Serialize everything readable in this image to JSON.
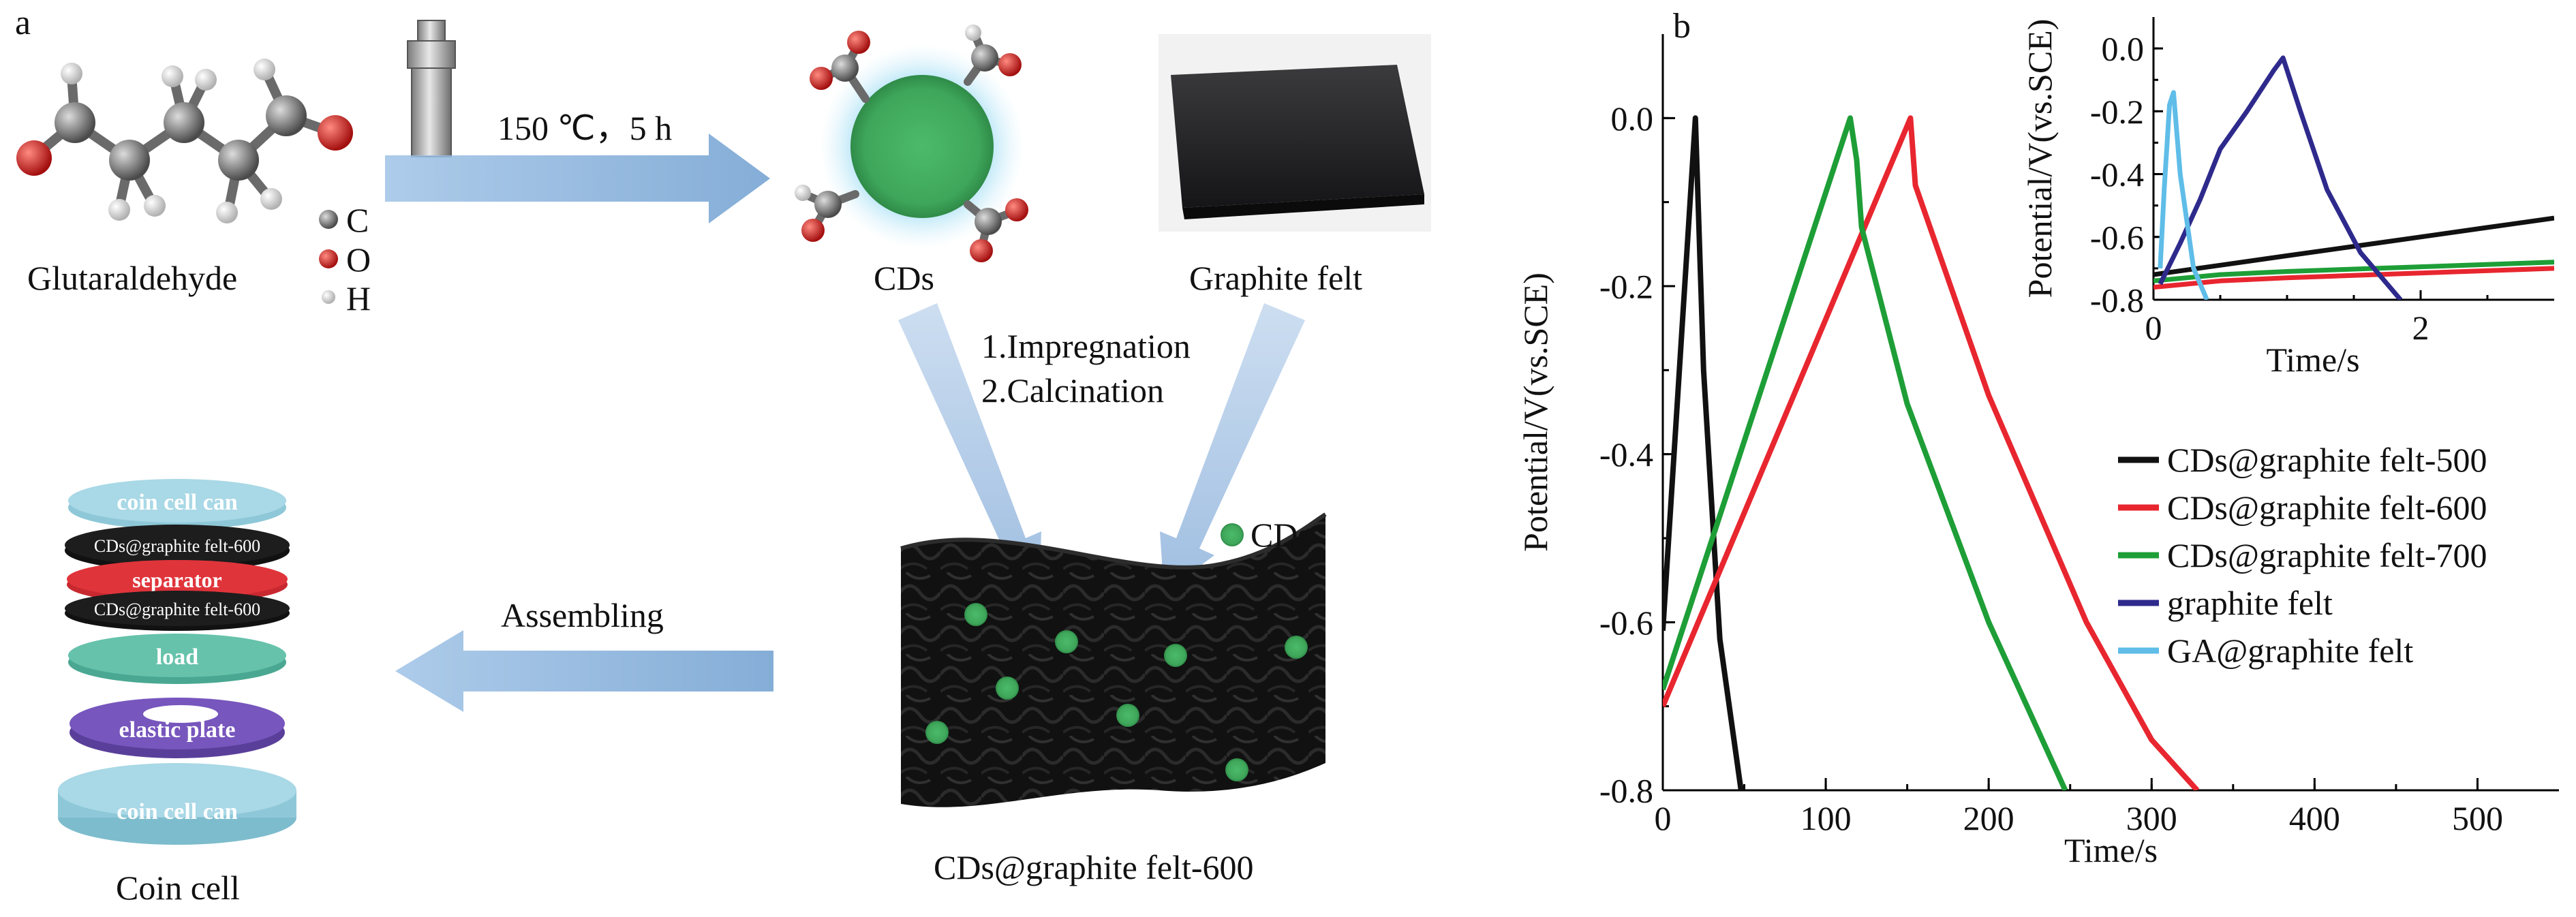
{
  "panel_a": {
    "panel_label": "a",
    "molecule_label": "Glutaraldehyde",
    "atom_legend": [
      "C",
      "O",
      "H"
    ],
    "reaction_condition": "150 ℃，5 h",
    "cds_label": "CDs",
    "graphite_felt_label": "Graphite felt",
    "step1": "1.Impregnation",
    "step2": "2.Calcination",
    "product_legend": "CDs",
    "product_label": "CDs@graphite felt-600",
    "assembling_label": "Assembling",
    "coin_cell_label": "Coin cell",
    "coin_layers": [
      "coin cell can",
      "CDs@graphite felt-600",
      "separator",
      "CDs@graphite felt-600",
      "load",
      "elastic plate",
      "coin cell can"
    ]
  },
  "chart_data": [
    {
      "type": "line",
      "panel_label": "b",
      "xlabel": "Time/s",
      "ylabel": "Potential/V(vs.SCE)",
      "xlim": [
        0,
        550
      ],
      "ylim": [
        -0.8,
        0.1
      ],
      "xticks": [
        "0",
        "100",
        "200",
        "300",
        "400",
        "500"
      ],
      "yticks": [
        "0.0",
        "-0.2",
        "-0.4",
        "-0.6",
        "-0.8"
      ],
      "legend_position": "right",
      "series": [
        {
          "name": "CDs@graphite felt-500",
          "color": "#111111",
          "x": [
            0,
            20,
            25,
            35,
            48
          ],
          "y": [
            -0.61,
            0.0,
            -0.3,
            -0.62,
            -0.8
          ]
        },
        {
          "name": "CDs@graphite felt-600",
          "color": "#e8262f",
          "x": [
            0,
            152,
            155,
            200,
            260,
            300,
            328
          ],
          "y": [
            -0.7,
            0.0,
            -0.08,
            -0.33,
            -0.6,
            -0.74,
            -0.8
          ]
        },
        {
          "name": "CDs@graphite felt-700",
          "color": "#1e9e37",
          "x": [
            0,
            115,
            119,
            122,
            150,
            200,
            247
          ],
          "y": [
            -0.68,
            0.0,
            -0.05,
            -0.13,
            -0.34,
            -0.6,
            -0.8
          ]
        },
        {
          "name": "graphite felt",
          "color": "#2e2a8c",
          "x": [],
          "y": []
        },
        {
          "name": "GA@graphite felt",
          "color": "#5fbde8",
          "x": [],
          "y": []
        }
      ]
    },
    {
      "type": "line",
      "panel_label": "inset",
      "xlabel": "Time/s",
      "ylabel": "Potential/V(vs.SCE)",
      "xlim": [
        0,
        3
      ],
      "ylim": [
        -0.8,
        0.1
      ],
      "xticks": [
        "0",
        "2"
      ],
      "yticks": [
        "0.0",
        "-0.2",
        "-0.4",
        "-0.6",
        "-0.8"
      ],
      "series": [
        {
          "name": "CDs@graphite felt-500",
          "color": "#111111",
          "x": [
            0,
            0.5,
            1,
            1.5,
            2,
            2.5,
            3
          ],
          "y": [
            -0.72,
            -0.69,
            -0.66,
            -0.63,
            -0.6,
            -0.57,
            -0.54
          ]
        },
        {
          "name": "CDs@graphite felt-600",
          "color": "#e8262f",
          "x": [
            0,
            0.5,
            1,
            2,
            3
          ],
          "y": [
            -0.76,
            -0.74,
            -0.73,
            -0.715,
            -0.7
          ]
        },
        {
          "name": "CDs@graphite felt-700",
          "color": "#1e9e37",
          "x": [
            0,
            0.5,
            1,
            2,
            3
          ],
          "y": [
            -0.74,
            -0.72,
            -0.71,
            -0.695,
            -0.68
          ]
        },
        {
          "name": "graphite felt",
          "color": "#2e2a8c",
          "x": [
            0.05,
            0.2,
            0.35,
            0.5,
            0.7,
            0.9,
            0.97,
            1.1,
            1.3,
            1.55,
            1.85
          ],
          "y": [
            -0.75,
            -0.62,
            -0.48,
            -0.32,
            -0.2,
            -0.07,
            -0.03,
            -0.2,
            -0.45,
            -0.65,
            -0.8
          ]
        },
        {
          "name": "GA@graphite felt",
          "color": "#5fbde8",
          "x": [
            0.05,
            0.08,
            0.12,
            0.15,
            0.2,
            0.3,
            0.4
          ],
          "y": [
            -0.7,
            -0.45,
            -0.18,
            -0.14,
            -0.4,
            -0.7,
            -0.8
          ]
        }
      ]
    }
  ]
}
